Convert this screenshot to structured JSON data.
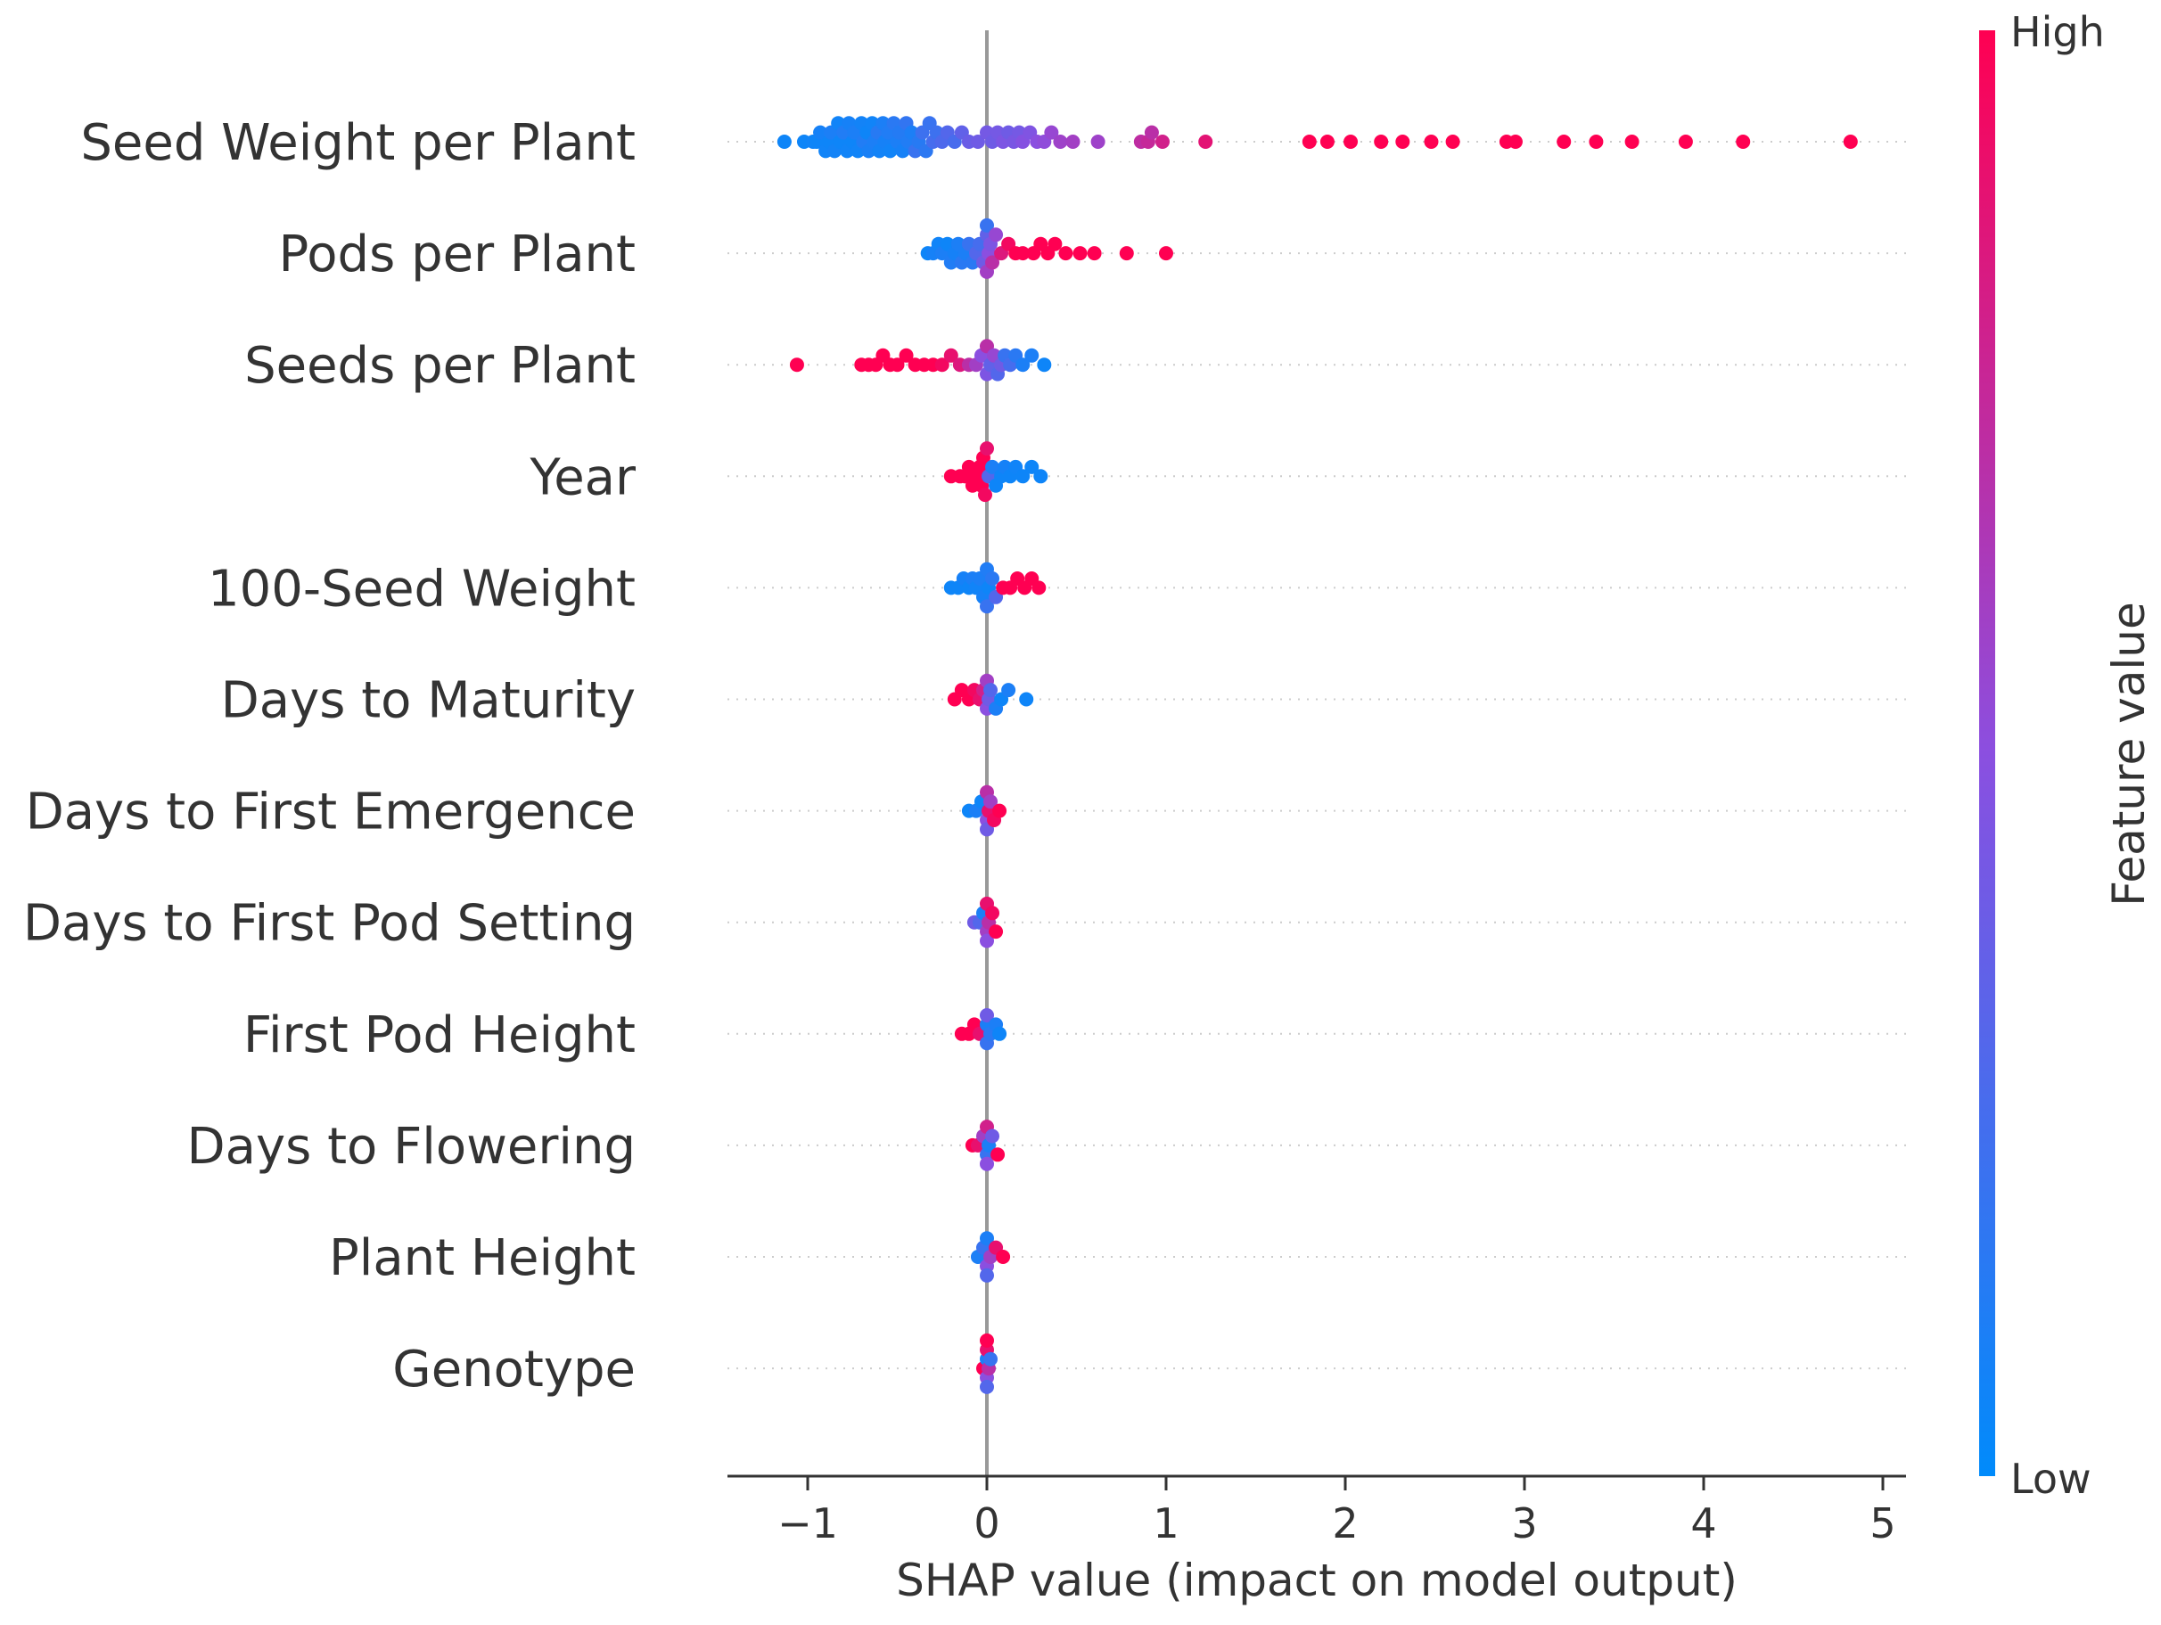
{
  "chart_data": {
    "type": "scatter",
    "subtype": "shap-beeswarm",
    "xlabel": "SHAP value (impact on model output)",
    "xlim": [
      -1.45,
      5.13
    ],
    "xticks": [
      -1,
      0,
      1,
      2,
      3,
      4,
      5
    ],
    "xtick_labels": [
      "−1",
      "0",
      "1",
      "2",
      "3",
      "4",
      "5"
    ],
    "colorbar": {
      "label": "Feature value",
      "high": "High",
      "low": "Low",
      "low_color": "#008bfb",
      "mid_color": "#8b4fe0",
      "high_color": "#ff0052"
    },
    "features": [
      {
        "name": "Seed Weight per Plant",
        "points": [
          [
            -1.13,
            0.05
          ],
          [
            -1.02,
            0.05
          ],
          [
            -0.97,
            0.06
          ],
          [
            -0.95,
            0.05
          ],
          [
            -0.93,
            0.08
          ],
          [
            -0.9,
            0.06
          ],
          [
            -0.88,
            0.05
          ],
          [
            -0.87,
            0.1
          ],
          [
            -0.85,
            0.07
          ],
          [
            -0.83,
            0.06
          ],
          [
            -0.82,
            0.05
          ],
          [
            -0.8,
            0.12
          ],
          [
            -0.78,
            0.06
          ],
          [
            -0.77,
            0.08
          ],
          [
            -0.75,
            0.05
          ],
          [
            -0.74,
            0.1
          ],
          [
            -0.72,
            0.06
          ],
          [
            -0.7,
            0.07
          ],
          [
            -0.69,
            0.12
          ],
          [
            -0.67,
            0.05
          ],
          [
            -0.66,
            0.09
          ],
          [
            -0.64,
            0.06
          ],
          [
            -0.63,
            0.1
          ],
          [
            -0.61,
            0.14
          ],
          [
            -0.6,
            0.07
          ],
          [
            -0.58,
            0.1
          ],
          [
            -0.57,
            0.08
          ],
          [
            -0.55,
            0.12
          ],
          [
            -0.54,
            0.06
          ],
          [
            -0.52,
            0.15
          ],
          [
            -0.5,
            0.1
          ],
          [
            -0.49,
            0.13
          ],
          [
            -0.47,
            0.08
          ],
          [
            -0.45,
            0.18
          ],
          [
            -0.44,
            0.12
          ],
          [
            -0.42,
            0.1
          ],
          [
            -0.4,
            0.2
          ],
          [
            -0.38,
            0.14
          ],
          [
            -0.36,
            0.22
          ],
          [
            -0.34,
            0.16
          ],
          [
            -0.32,
            0.2
          ],
          [
            -0.3,
            0.25
          ],
          [
            -0.28,
            0.22
          ],
          [
            -0.25,
            0.28
          ],
          [
            -0.22,
            0.3
          ],
          [
            -0.18,
            0.26
          ],
          [
            -0.14,
            0.35
          ],
          [
            -0.1,
            0.38
          ],
          [
            -0.05,
            0.4
          ],
          [
            0.0,
            0.42
          ],
          [
            0.03,
            0.4
          ],
          [
            0.06,
            0.42
          ],
          [
            0.09,
            0.45
          ],
          [
            0.12,
            0.4
          ],
          [
            0.15,
            0.44
          ],
          [
            0.18,
            0.42
          ],
          [
            0.2,
            0.48
          ],
          [
            0.24,
            0.46
          ],
          [
            0.28,
            0.5
          ],
          [
            0.32,
            0.52
          ],
          [
            0.36,
            0.55
          ],
          [
            0.41,
            0.58
          ],
          [
            0.48,
            0.6
          ],
          [
            0.62,
            0.58
          ],
          [
            0.86,
            0.72
          ],
          [
            0.9,
            0.75
          ],
          [
            0.92,
            0.7
          ],
          [
            0.98,
            0.8
          ],
          [
            1.22,
            0.88
          ],
          [
            1.8,
            1
          ],
          [
            1.9,
            1
          ],
          [
            2.03,
            1
          ],
          [
            2.2,
            1
          ],
          [
            2.32,
            1
          ],
          [
            2.48,
            1
          ],
          [
            2.6,
            1
          ],
          [
            2.9,
            1
          ],
          [
            2.95,
            1
          ],
          [
            3.22,
            1
          ],
          [
            3.4,
            1
          ],
          [
            3.6,
            1
          ],
          [
            3.9,
            1
          ],
          [
            4.22,
            1
          ],
          [
            4.82,
            1
          ]
        ]
      },
      {
        "name": "Pods per Plant",
        "points": [
          [
            -0.33,
            0.05
          ],
          [
            -0.3,
            0.08
          ],
          [
            -0.27,
            0.06
          ],
          [
            -0.25,
            0.1
          ],
          [
            -0.22,
            0.05
          ],
          [
            -0.2,
            0.12
          ],
          [
            -0.18,
            0.08
          ],
          [
            -0.16,
            0.1
          ],
          [
            -0.14,
            0.15
          ],
          [
            -0.12,
            0.1
          ],
          [
            -0.1,
            0.2
          ],
          [
            -0.08,
            0.15
          ],
          [
            -0.06,
            0.3
          ],
          [
            -0.04,
            0.25
          ],
          [
            -0.02,
            0.4
          ],
          [
            0.0,
            0.35
          ],
          [
            0.0,
            0.6
          ],
          [
            0.0,
            0.2
          ],
          [
            0.01,
            0.5
          ],
          [
            0.02,
            0.45
          ],
          [
            0.03,
            0.7
          ],
          [
            0.05,
            0.55
          ],
          [
            0.08,
            0.85
          ],
          [
            0.12,
            0.95
          ],
          [
            0.16,
            1
          ],
          [
            0.2,
            1
          ],
          [
            0.26,
            1
          ],
          [
            0.3,
            1
          ],
          [
            0.34,
            1
          ],
          [
            0.38,
            1
          ],
          [
            0.44,
            1
          ],
          [
            0.52,
            1
          ],
          [
            0.6,
            1
          ],
          [
            0.78,
            1
          ],
          [
            1.0,
            1
          ]
        ]
      },
      {
        "name": "Seeds per Plant",
        "points": [
          [
            -1.06,
            1
          ],
          [
            -0.7,
            1
          ],
          [
            -0.66,
            1
          ],
          [
            -0.62,
            1
          ],
          [
            -0.58,
            1
          ],
          [
            -0.54,
            1
          ],
          [
            -0.5,
            1
          ],
          [
            -0.45,
            1
          ],
          [
            -0.4,
            1
          ],
          [
            -0.35,
            1
          ],
          [
            -0.3,
            1
          ],
          [
            -0.25,
            0.95
          ],
          [
            -0.2,
            0.9
          ],
          [
            -0.15,
            0.85
          ],
          [
            -0.1,
            0.7
          ],
          [
            -0.06,
            0.6
          ],
          [
            -0.03,
            0.5
          ],
          [
            0.0,
            0.45
          ],
          [
            0.0,
            0.7
          ],
          [
            0.02,
            0.35
          ],
          [
            0.04,
            0.55
          ],
          [
            0.06,
            0.3
          ],
          [
            0.08,
            0.4
          ],
          [
            0.1,
            0.2
          ],
          [
            0.13,
            0.25
          ],
          [
            0.16,
            0.15
          ],
          [
            0.2,
            0.1
          ],
          [
            0.25,
            0.1
          ],
          [
            0.32,
            0.05
          ]
        ]
      },
      {
        "name": "Year",
        "points": [
          [
            -0.2,
            1
          ],
          [
            -0.15,
            1
          ],
          [
            -0.12,
            1
          ],
          [
            -0.1,
            1
          ],
          [
            -0.08,
            1
          ],
          [
            -0.06,
            1
          ],
          [
            -0.04,
            1
          ],
          [
            -0.03,
            1
          ],
          [
            -0.02,
            1
          ],
          [
            -0.01,
            0.95
          ],
          [
            0.0,
            0.9
          ],
          [
            0.01,
            0.3
          ],
          [
            0.03,
            0.1
          ],
          [
            0.05,
            0.05
          ],
          [
            0.08,
            0.05
          ],
          [
            0.1,
            0.08
          ],
          [
            0.13,
            0.05
          ],
          [
            0.16,
            0.06
          ],
          [
            0.2,
            0.05
          ],
          [
            0.25,
            0.05
          ],
          [
            0.3,
            0.05
          ]
        ]
      },
      {
        "name": "100-Seed Weight",
        "points": [
          [
            -0.2,
            0.05
          ],
          [
            -0.16,
            0.05
          ],
          [
            -0.13,
            0.08
          ],
          [
            -0.1,
            0.05
          ],
          [
            -0.08,
            0.1
          ],
          [
            -0.06,
            0.06
          ],
          [
            -0.04,
            0.1
          ],
          [
            -0.02,
            0.08
          ],
          [
            0.0,
            0.12
          ],
          [
            0.0,
            0.2
          ],
          [
            0.01,
            0.05
          ],
          [
            0.03,
            0.15
          ],
          [
            0.05,
            0.3
          ],
          [
            0.09,
            1
          ],
          [
            0.13,
            1
          ],
          [
            0.17,
            1
          ],
          [
            0.21,
            1
          ],
          [
            0.25,
            1
          ],
          [
            0.29,
            1
          ]
        ]
      },
      {
        "name": "Days to Maturity",
        "points": [
          [
            -0.18,
            1
          ],
          [
            -0.14,
            1
          ],
          [
            -0.1,
            1
          ],
          [
            -0.07,
            0.95
          ],
          [
            -0.04,
            0.9
          ],
          [
            -0.02,
            0.8
          ],
          [
            0.0,
            0.5
          ],
          [
            0.0,
            0.6
          ],
          [
            0.01,
            0.4
          ],
          [
            0.02,
            0.3
          ],
          [
            0.05,
            0.1
          ],
          [
            0.08,
            0.05
          ],
          [
            0.12,
            0.1
          ],
          [
            0.22,
            0.05
          ]
        ]
      },
      {
        "name": "Days to First Emergence",
        "points": [
          [
            -0.1,
            0.05
          ],
          [
            -0.06,
            0.1
          ],
          [
            -0.03,
            0.05
          ],
          [
            0.0,
            0.5
          ],
          [
            0.0,
            0.7
          ],
          [
            0.0,
            0.4
          ],
          [
            0.01,
            0.9
          ],
          [
            0.02,
            0.6
          ],
          [
            0.04,
            0.95
          ],
          [
            0.07,
            1
          ]
        ]
      },
      {
        "name": "Days to First Pod Setting",
        "points": [
          [
            -0.07,
            0.4
          ],
          [
            -0.04,
            0.3
          ],
          [
            -0.02,
            0.1
          ],
          [
            0.0,
            0.6
          ],
          [
            0.0,
            0.9
          ],
          [
            0.0,
            0.5
          ],
          [
            0.01,
            0.7
          ],
          [
            0.03,
            0.95
          ],
          [
            0.05,
            1
          ]
        ]
      },
      {
        "name": "First Pod Height",
        "points": [
          [
            -0.14,
            1
          ],
          [
            -0.1,
            1
          ],
          [
            -0.07,
            1
          ],
          [
            -0.04,
            0.9
          ],
          [
            0.0,
            0.1
          ],
          [
            0.0,
            0.2
          ],
          [
            0.0,
            0.4
          ],
          [
            0.02,
            0.15
          ],
          [
            0.05,
            0.1
          ],
          [
            0.07,
            0.05
          ]
        ]
      },
      {
        "name": "Days to Flowering",
        "points": [
          [
            -0.08,
            1
          ],
          [
            -0.05,
            0.9
          ],
          [
            -0.02,
            0.6
          ],
          [
            0.0,
            0.2
          ],
          [
            0.0,
            0.8
          ],
          [
            0.0,
            0.5
          ],
          [
            0.01,
            0.1
          ],
          [
            0.03,
            0.4
          ],
          [
            0.06,
            1
          ]
        ]
      },
      {
        "name": "Plant Height",
        "points": [
          [
            -0.05,
            0.1
          ],
          [
            -0.02,
            0.2
          ],
          [
            0.0,
            0.5
          ],
          [
            0.0,
            0.1
          ],
          [
            0.0,
            0.3
          ],
          [
            0.02,
            0.6
          ],
          [
            0.05,
            0.9
          ],
          [
            0.09,
            1
          ]
        ]
      },
      {
        "name": "Genotype",
        "points": [
          [
            -0.02,
            1
          ],
          [
            0.0,
            0.1
          ],
          [
            0.0,
            0.5
          ],
          [
            0.0,
            0.9
          ],
          [
            0.0,
            0.3
          ],
          [
            0.0,
            1
          ],
          [
            0.01,
            0.7
          ],
          [
            0.02,
            0.2
          ]
        ]
      }
    ]
  }
}
